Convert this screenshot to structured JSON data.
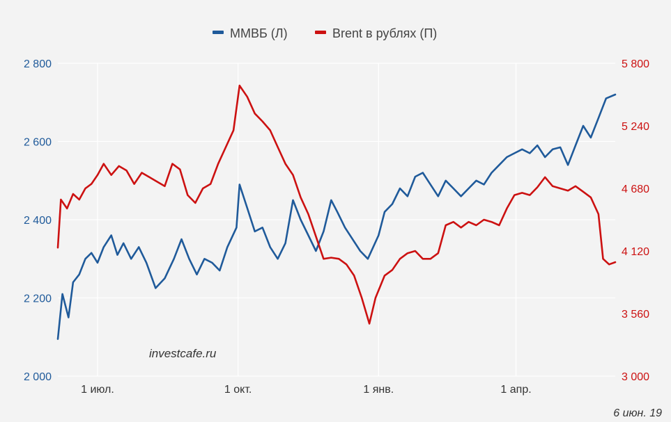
{
  "chart_data": {
    "type": "line",
    "title": "",
    "legend": {
      "placement": "top-center",
      "entries": [
        "ММВБ (Л)",
        "Brent в рублях (П)"
      ]
    },
    "grid": true,
    "left_axis": {
      "range": [
        2000,
        2800
      ],
      "ticks": [
        2000,
        2200,
        2400,
        2600,
        2800
      ],
      "tick_labels": [
        "2 000",
        "2 200",
        "2 400",
        "2 600",
        "2 800"
      ],
      "color": "#1f5a9a"
    },
    "right_axis": {
      "range": [
        3000,
        5800
      ],
      "ticks": [
        3000,
        3560,
        4120,
        4680,
        5240,
        5800
      ],
      "tick_labels": [
        "3 000",
        "3 560",
        "4 120",
        "4 680",
        "5 240",
        "5 800"
      ],
      "color": "#cc1111"
    },
    "x_axis": {
      "range": [
        "2018-06-05",
        "2019-06-05"
      ],
      "ticks": [
        "2018-07-01",
        "2018-10-01",
        "2019-01-01",
        "2019-04-01"
      ],
      "tick_labels": [
        "1 июл.",
        "1 окт.",
        "1 янв.",
        "1 апр."
      ]
    },
    "series": [
      {
        "name": "ММВБ (Л)",
        "axis": "left",
        "color": "#1f5a9a",
        "points": [
          [
            "2018-06-05",
            2095
          ],
          [
            "2018-06-08",
            2210
          ],
          [
            "2018-06-12",
            2150
          ],
          [
            "2018-06-15",
            2240
          ],
          [
            "2018-06-19",
            2260
          ],
          [
            "2018-06-23",
            2300
          ],
          [
            "2018-06-27",
            2315
          ],
          [
            "2018-07-01",
            2290
          ],
          [
            "2018-07-05",
            2330
          ],
          [
            "2018-07-10",
            2360
          ],
          [
            "2018-07-14",
            2310
          ],
          [
            "2018-07-18",
            2340
          ],
          [
            "2018-07-23",
            2300
          ],
          [
            "2018-07-28",
            2330
          ],
          [
            "2018-08-02",
            2290
          ],
          [
            "2018-08-08",
            2225
          ],
          [
            "2018-08-14",
            2250
          ],
          [
            "2018-08-20",
            2300
          ],
          [
            "2018-08-25",
            2350
          ],
          [
            "2018-08-30",
            2300
          ],
          [
            "2018-09-04",
            2260
          ],
          [
            "2018-09-09",
            2300
          ],
          [
            "2018-09-14",
            2290
          ],
          [
            "2018-09-19",
            2270
          ],
          [
            "2018-09-24",
            2330
          ],
          [
            "2018-09-30",
            2380
          ],
          [
            "2018-10-02",
            2490
          ],
          [
            "2018-10-07",
            2430
          ],
          [
            "2018-10-12",
            2370
          ],
          [
            "2018-10-17",
            2380
          ],
          [
            "2018-10-22",
            2330
          ],
          [
            "2018-10-27",
            2300
          ],
          [
            "2018-11-01",
            2340
          ],
          [
            "2018-11-06",
            2450
          ],
          [
            "2018-11-11",
            2400
          ],
          [
            "2018-11-16",
            2360
          ],
          [
            "2018-11-21",
            2320
          ],
          [
            "2018-11-26",
            2370
          ],
          [
            "2018-12-01",
            2450
          ],
          [
            "2018-12-05",
            2420
          ],
          [
            "2018-12-10",
            2380
          ],
          [
            "2018-12-15",
            2350
          ],
          [
            "2018-12-20",
            2320
          ],
          [
            "2018-12-25",
            2300
          ],
          [
            "2019-01-01",
            2360
          ],
          [
            "2019-01-05",
            2420
          ],
          [
            "2019-01-10",
            2440
          ],
          [
            "2019-01-15",
            2480
          ],
          [
            "2019-01-20",
            2460
          ],
          [
            "2019-01-25",
            2510
          ],
          [
            "2019-01-30",
            2520
          ],
          [
            "2019-02-04",
            2490
          ],
          [
            "2019-02-09",
            2460
          ],
          [
            "2019-02-14",
            2500
          ],
          [
            "2019-02-19",
            2480
          ],
          [
            "2019-02-24",
            2460
          ],
          [
            "2019-03-01",
            2480
          ],
          [
            "2019-03-06",
            2500
          ],
          [
            "2019-03-11",
            2490
          ],
          [
            "2019-03-16",
            2520
          ],
          [
            "2019-03-21",
            2540
          ],
          [
            "2019-03-26",
            2560
          ],
          [
            "2019-03-31",
            2570
          ],
          [
            "2019-04-05",
            2580
          ],
          [
            "2019-04-10",
            2570
          ],
          [
            "2019-04-15",
            2590
          ],
          [
            "2019-04-20",
            2560
          ],
          [
            "2019-04-25",
            2580
          ],
          [
            "2019-04-30",
            2585
          ],
          [
            "2019-05-05",
            2540
          ],
          [
            "2019-05-10",
            2590
          ],
          [
            "2019-05-15",
            2640
          ],
          [
            "2019-05-20",
            2610
          ],
          [
            "2019-05-25",
            2660
          ],
          [
            "2019-05-30",
            2710
          ],
          [
            "2019-06-05",
            2720
          ]
        ]
      },
      {
        "name": "Brent в рублях (П)",
        "axis": "right",
        "color": "#cc1111",
        "points": [
          [
            "2018-06-05",
            4150
          ],
          [
            "2018-06-07",
            4580
          ],
          [
            "2018-06-11",
            4500
          ],
          [
            "2018-06-15",
            4630
          ],
          [
            "2018-06-19",
            4580
          ],
          [
            "2018-06-23",
            4680
          ],
          [
            "2018-06-27",
            4720
          ],
          [
            "2018-07-01",
            4800
          ],
          [
            "2018-07-05",
            4900
          ],
          [
            "2018-07-10",
            4800
          ],
          [
            "2018-07-15",
            4880
          ],
          [
            "2018-07-20",
            4840
          ],
          [
            "2018-07-25",
            4720
          ],
          [
            "2018-07-30",
            4820
          ],
          [
            "2018-08-04",
            4780
          ],
          [
            "2018-08-09",
            4740
          ],
          [
            "2018-08-14",
            4700
          ],
          [
            "2018-08-19",
            4900
          ],
          [
            "2018-08-24",
            4850
          ],
          [
            "2018-08-29",
            4620
          ],
          [
            "2018-09-03",
            4550
          ],
          [
            "2018-09-08",
            4680
          ],
          [
            "2018-09-13",
            4720
          ],
          [
            "2018-09-18",
            4900
          ],
          [
            "2018-09-23",
            5050
          ],
          [
            "2018-09-28",
            5200
          ],
          [
            "2018-10-02",
            5600
          ],
          [
            "2018-10-07",
            5500
          ],
          [
            "2018-10-12",
            5350
          ],
          [
            "2018-10-17",
            5280
          ],
          [
            "2018-10-22",
            5200
          ],
          [
            "2018-10-27",
            5050
          ],
          [
            "2018-11-01",
            4900
          ],
          [
            "2018-11-06",
            4800
          ],
          [
            "2018-11-11",
            4600
          ],
          [
            "2018-11-16",
            4450
          ],
          [
            "2018-11-21",
            4250
          ],
          [
            "2018-11-26",
            4050
          ],
          [
            "2018-12-01",
            4060
          ],
          [
            "2018-12-06",
            4050
          ],
          [
            "2018-12-11",
            4000
          ],
          [
            "2018-12-16",
            3900
          ],
          [
            "2018-12-21",
            3700
          ],
          [
            "2018-12-26",
            3470
          ],
          [
            "2018-12-30",
            3700
          ],
          [
            "2019-01-05",
            3900
          ],
          [
            "2019-01-10",
            3950
          ],
          [
            "2019-01-15",
            4050
          ],
          [
            "2019-01-20",
            4100
          ],
          [
            "2019-01-25",
            4120
          ],
          [
            "2019-01-30",
            4050
          ],
          [
            "2019-02-04",
            4050
          ],
          [
            "2019-02-09",
            4100
          ],
          [
            "2019-02-14",
            4350
          ],
          [
            "2019-02-19",
            4380
          ],
          [
            "2019-02-24",
            4330
          ],
          [
            "2019-03-01",
            4380
          ],
          [
            "2019-03-06",
            4350
          ],
          [
            "2019-03-11",
            4400
          ],
          [
            "2019-03-16",
            4380
          ],
          [
            "2019-03-21",
            4350
          ],
          [
            "2019-03-26",
            4500
          ],
          [
            "2019-03-31",
            4620
          ],
          [
            "2019-04-05",
            4640
          ],
          [
            "2019-04-10",
            4620
          ],
          [
            "2019-04-15",
            4690
          ],
          [
            "2019-04-20",
            4780
          ],
          [
            "2019-04-25",
            4700
          ],
          [
            "2019-04-30",
            4680
          ],
          [
            "2019-05-05",
            4660
          ],
          [
            "2019-05-10",
            4700
          ],
          [
            "2019-05-15",
            4650
          ],
          [
            "2019-05-20",
            4600
          ],
          [
            "2019-05-25",
            4450
          ],
          [
            "2019-05-28",
            4050
          ],
          [
            "2019-06-01",
            4000
          ],
          [
            "2019-06-05",
            4020
          ]
        ]
      }
    ]
  },
  "watermark": "investcafe.ru",
  "date_stamp": "6 июн. 19"
}
